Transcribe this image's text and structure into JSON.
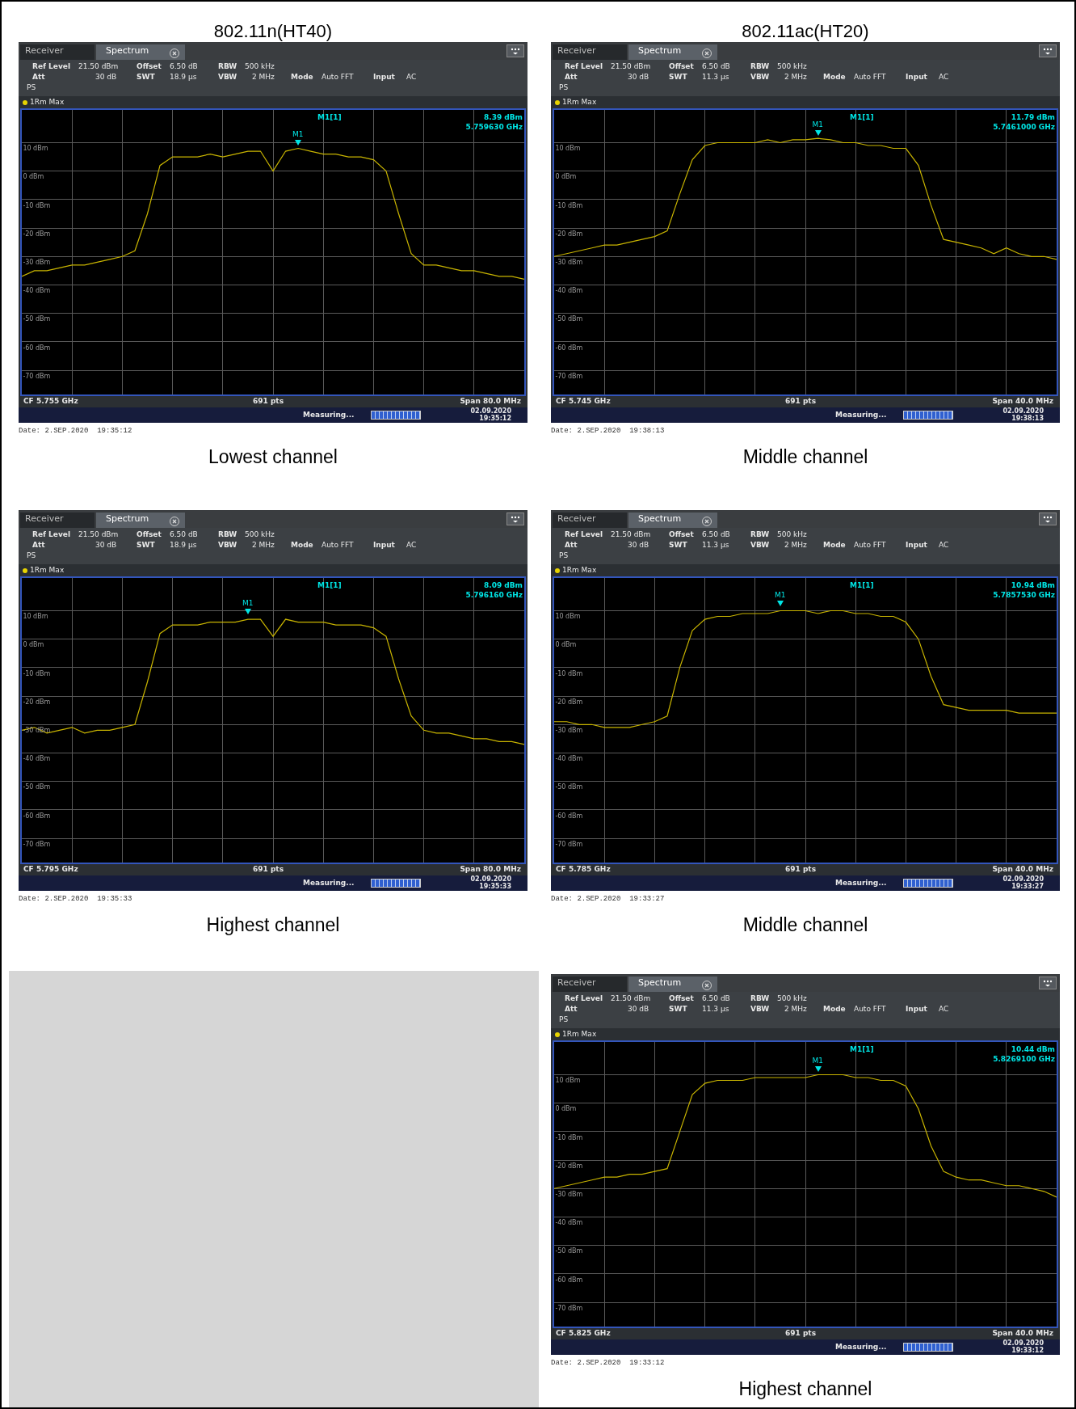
{
  "chart_data": [
    {
      "type": "line",
      "title": "802.11n(HT40)",
      "categories": [
        null,
        null,
        null,
        null,
        null,
        null,
        null,
        null,
        null,
        null,
        null,
        null,
        null,
        null,
        null,
        null,
        null,
        null,
        null,
        null,
        null,
        null,
        null,
        null,
        null,
        null,
        null,
        null,
        null,
        null,
        null,
        null,
        null,
        null,
        null,
        null,
        null,
        null,
        null,
        null,
        null
      ],
      "color": "#c8b400",
      "values": [
        -37,
        -35,
        -35,
        -34,
        -33,
        -33,
        -32,
        -31,
        -30,
        -28,
        -15,
        2,
        5,
        5,
        5,
        6,
        5,
        6,
        7,
        7,
        0,
        7,
        8,
        7,
        6,
        6,
        5,
        5,
        4,
        0,
        -15,
        -29,
        -33,
        -33,
        -34,
        -35,
        -35,
        -36,
        -37,
        -37,
        -38
      ],
      "ylim": [
        -78.5,
        21.5
      ],
      "yticks": [
        {
          "value": 10,
          "label": "10 dBm"
        },
        {
          "value": 0,
          "label": "0 dBm"
        },
        {
          "value": -10,
          "label": "-10 dBm"
        },
        {
          "value": -20,
          "label": "-20 dBm"
        },
        {
          "value": -30,
          "label": "-30 dBm"
        },
        {
          "value": -40,
          "label": "-40 dBm"
        },
        {
          "value": -50,
          "label": "-50 dBm"
        },
        {
          "value": -60,
          "label": "-60 dBm"
        },
        {
          "value": -70,
          "label": "-70 dBm"
        }
      ],
      "grid": true,
      "tick_labels": "y",
      "annotations": [
        "Receiver",
        "Spectrum",
        "Ref Level",
        "21.50 dBm",
        "Offset",
        "6.50 dB",
        "RBW",
        "500 kHz",
        "Att",
        "30 dB",
        "SWT",
        "18.9 µs",
        "VBW",
        "2 MHz",
        "Mode",
        "Auto FFT",
        "Input",
        "AC",
        "PS",
        "1Rm Max",
        "M1[1]",
        "8.39 dBm",
        "5.759630 GHz",
        "CF 5.755 GHz",
        "691 pts",
        "Span 80.0 MHz",
        "Measuring...",
        "02.09.2020",
        "19:35:12",
        "Date: 2.SEP.2020  19:35:12",
        "Lowest channel",
        {
          "text": "M1",
          "y": 8.39
        }
      ]
    },
    {
      "type": "line",
      "title": "802.11ac(HT20)",
      "categories": [
        null,
        null,
        null,
        null,
        null,
        null,
        null,
        null,
        null,
        null,
        null,
        null,
        null,
        null,
        null,
        null,
        null,
        null,
        null,
        null,
        null,
        null,
        null,
        null,
        null,
        null,
        null,
        null,
        null,
        null,
        null,
        null,
        null,
        null,
        null,
        null,
        null,
        null,
        null,
        null,
        null
      ],
      "color": "#c8b400",
      "values": [
        -30,
        -29,
        -28,
        -27,
        -26,
        -26,
        -25,
        -24,
        -23,
        -21,
        -8,
        4,
        9,
        10,
        10,
        10,
        10,
        11,
        10,
        11,
        11,
        11.5,
        11,
        10,
        10,
        9,
        9,
        8,
        8,
        2,
        -12,
        -24,
        -25,
        -26,
        -27,
        -29,
        -27,
        -29,
        -30,
        -30,
        -31
      ],
      "ylim": [
        -78.5,
        21.5
      ],
      "yticks": [
        {
          "value": 10,
          "label": "10 dBm"
        },
        {
          "value": 0,
          "label": "0 dBm"
        },
        {
          "value": -10,
          "label": "-10 dBm"
        },
        {
          "value": -20,
          "label": "-20 dBm"
        },
        {
          "value": -30,
          "label": "-30 dBm"
        },
        {
          "value": -40,
          "label": "-40 dBm"
        },
        {
          "value": -50,
          "label": "-50 dBm"
        },
        {
          "value": -60,
          "label": "-60 dBm"
        },
        {
          "value": -70,
          "label": "-70 dBm"
        }
      ],
      "grid": true,
      "tick_labels": "y",
      "annotations": [
        "Receiver",
        "Spectrum",
        "Ref Level",
        "21.50 dBm",
        "Offset",
        "6.50 dB",
        "RBW",
        "500 kHz",
        "Att",
        "30 dB",
        "SWT",
        "11.3 µs",
        "VBW",
        "2 MHz",
        "Mode",
        "Auto FFT",
        "Input",
        "AC",
        "PS",
        "1Rm Max",
        "M1[1]",
        "11.79 dBm",
        "5.7461000 GHz",
        "CF 5.745 GHz",
        "691 pts",
        "Span 40.0 MHz",
        "Measuring...",
        "02.09.2020",
        "19:38:13",
        "Date: 2.SEP.2020  19:38:13",
        "Middle channel",
        {
          "text": "M1",
          "y": 11.79
        }
      ]
    },
    {
      "type": "line",
      "categories": [
        null,
        null,
        null,
        null,
        null,
        null,
        null,
        null,
        null,
        null,
        null,
        null,
        null,
        null,
        null,
        null,
        null,
        null,
        null,
        null,
        null,
        null,
        null,
        null,
        null,
        null,
        null,
        null,
        null,
        null,
        null,
        null,
        null,
        null,
        null,
        null,
        null,
        null,
        null,
        null,
        null
      ],
      "color": "#c8b400",
      "values": [
        -32,
        -31,
        -33,
        -32,
        -31,
        -33,
        -32,
        -32,
        -31,
        -30,
        -15,
        2,
        5,
        5,
        5,
        6,
        6,
        6,
        7,
        7,
        1,
        7,
        6,
        6,
        6,
        5,
        5,
        5,
        4,
        1,
        -14,
        -27,
        -32,
        -33,
        -33,
        -34,
        -35,
        -35,
        -36,
        -36,
        -37
      ],
      "ylim": [
        -78.5,
        21.5
      ],
      "yticks": [
        {
          "value": 10,
          "label": "10 dBm"
        },
        {
          "value": 0,
          "label": "0 dBm"
        },
        {
          "value": -10,
          "label": "-10 dBm"
        },
        {
          "value": -20,
          "label": "-20 dBm"
        },
        {
          "value": -30,
          "label": "-30 dBm"
        },
        {
          "value": -40,
          "label": "-40 dBm"
        },
        {
          "value": -50,
          "label": "-50 dBm"
        },
        {
          "value": -60,
          "label": "-60 dBm"
        },
        {
          "value": -70,
          "label": "-70 dBm"
        }
      ],
      "grid": true,
      "tick_labels": "y",
      "annotations": [
        "Receiver",
        "Spectrum",
        "Ref Level",
        "21.50 dBm",
        "Offset",
        "6.50 dB",
        "RBW",
        "500 kHz",
        "Att",
        "30 dB",
        "SWT",
        "18.9 µs",
        "VBW",
        "2 MHz",
        "Mode",
        "Auto FFT",
        "Input",
        "AC",
        "PS",
        "1Rm Max",
        "M1[1]",
        "8.09 dBm",
        "5.796160 GHz",
        "CF 5.795 GHz",
        "691 pts",
        "Span 80.0 MHz",
        "Measuring...",
        "02.09.2020",
        "19:35:33",
        "Date: 2.SEP.2020  19:35:33",
        "Highest channel",
        {
          "text": "M1",
          "y": 8.09
        }
      ]
    },
    {
      "type": "line",
      "categories": [
        null,
        null,
        null,
        null,
        null,
        null,
        null,
        null,
        null,
        null,
        null,
        null,
        null,
        null,
        null,
        null,
        null,
        null,
        null,
        null,
        null,
        null,
        null,
        null,
        null,
        null,
        null,
        null,
        null,
        null,
        null,
        null,
        null,
        null,
        null,
        null,
        null,
        null,
        null,
        null,
        null
      ],
      "color": "#c8b400",
      "values": [
        -29,
        -29,
        -30,
        -30,
        -31,
        -31,
        -31,
        -30,
        -29,
        -27,
        -10,
        3,
        7,
        8,
        8,
        9,
        9,
        9,
        10,
        10,
        10,
        9,
        10,
        10,
        9,
        9,
        8,
        8,
        6,
        0,
        -13,
        -23,
        -24,
        -25,
        -25,
        -25,
        -25,
        -26,
        -26,
        -26,
        -26
      ],
      "ylim": [
        -78.5,
        21.5
      ],
      "yticks": [
        {
          "value": 10,
          "label": "10 dBm"
        },
        {
          "value": 0,
          "label": "0 dBm"
        },
        {
          "value": -10,
          "label": "-10 dBm"
        },
        {
          "value": -20,
          "label": "-20 dBm"
        },
        {
          "value": -30,
          "label": "-30 dBm"
        },
        {
          "value": -40,
          "label": "-40 dBm"
        },
        {
          "value": -50,
          "label": "-50 dBm"
        },
        {
          "value": -60,
          "label": "-60 dBm"
        },
        {
          "value": -70,
          "label": "-70 dBm"
        }
      ],
      "grid": true,
      "tick_labels": "y",
      "annotations": [
        "Receiver",
        "Spectrum",
        "Ref Level",
        "21.50 dBm",
        "Offset",
        "6.50 dB",
        "RBW",
        "500 kHz",
        "Att",
        "30 dB",
        "SWT",
        "11.3 µs",
        "VBW",
        "2 MHz",
        "Mode",
        "Auto FFT",
        "Input",
        "AC",
        "PS",
        "1Rm Max",
        "M1[1]",
        "10.94 dBm",
        "5.7857530 GHz",
        "CF 5.785 GHz",
        "691 pts",
        "Span 40.0 MHz",
        "Measuring...",
        "02.09.2020",
        "19:33:27",
        "Date: 2.SEP.2020  19:33:27",
        "Middle channel",
        {
          "text": "M1",
          "y": 10.94
        }
      ]
    },
    {
      "type": "line",
      "categories": [
        null,
        null,
        null,
        null,
        null,
        null,
        null,
        null,
        null,
        null,
        null,
        null,
        null,
        null,
        null,
        null,
        null,
        null,
        null,
        null,
        null,
        null,
        null,
        null,
        null,
        null,
        null,
        null,
        null,
        null,
        null,
        null,
        null,
        null,
        null,
        null,
        null,
        null,
        null,
        null,
        null
      ],
      "color": "#c8b400",
      "values": [
        -30,
        -29,
        -28,
        -27,
        -26,
        -26,
        -25,
        -25,
        -24,
        -23,
        -10,
        3,
        7,
        8,
        8,
        8,
        9,
        9,
        9,
        9,
        9,
        10,
        10,
        10,
        9,
        9,
        8,
        8,
        6,
        -2,
        -15,
        -24,
        -26,
        -27,
        -27,
        -28,
        -29,
        -29,
        -30,
        -31,
        -33
      ],
      "ylim": [
        -78.5,
        21.5
      ],
      "yticks": [
        {
          "value": 10,
          "label": "10 dBm"
        },
        {
          "value": 0,
          "label": "0 dBm"
        },
        {
          "value": -10,
          "label": "-10 dBm"
        },
        {
          "value": -20,
          "label": "-20 dBm"
        },
        {
          "value": -30,
          "label": "-30 dBm"
        },
        {
          "value": -40,
          "label": "-40 dBm"
        },
        {
          "value": -50,
          "label": "-50 dBm"
        },
        {
          "value": -60,
          "label": "-60 dBm"
        },
        {
          "value": -70,
          "label": "-70 dBm"
        }
      ],
      "grid": true,
      "tick_labels": "y",
      "annotations": [
        "Receiver",
        "Spectrum",
        "Ref Level",
        "21.50 dBm",
        "Offset",
        "6.50 dB",
        "RBW",
        "500 kHz",
        "Att",
        "30 dB",
        "SWT",
        "11.3 µs",
        "VBW",
        "2 MHz",
        "Mode",
        "Auto FFT",
        "Input",
        "AC",
        "PS",
        "1Rm Max",
        "M1[1]",
        "10.44 dBm",
        "5.8269100 GHz",
        "CF 5.825 GHz",
        "691 pts",
        "Span 40.0 MHz",
        "Measuring...",
        "02.09.2020",
        "19:33:12",
        "Date: 2.SEP.2020  19:33:12",
        "Highest channel",
        {
          "text": "M1",
          "y": 10.44
        }
      ]
    }
  ]
}
